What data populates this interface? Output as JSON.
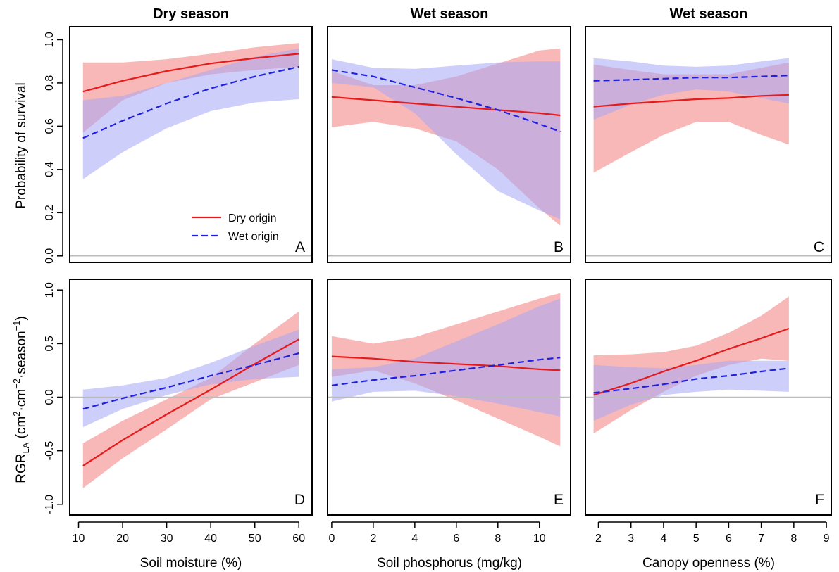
{
  "colors": {
    "dry_line": "#e8191b",
    "wet_line": "#1f1fe0",
    "dry_band": "#f5a0a0",
    "wet_band": "#a6a6f6",
    "zero_line": "#bbbbbb"
  },
  "chart_data": [
    {
      "id": "A",
      "type": "line",
      "title": "Dry season",
      "xlabel": "",
      "ylabel": "Probability of survival",
      "xlim": [
        8,
        63
      ],
      "ylim": [
        -0.03,
        1.06
      ],
      "xticks": [
        10,
        20,
        30,
        40,
        50,
        60
      ],
      "yticks": [
        0.0,
        0.2,
        0.4,
        0.6,
        0.8,
        1.0
      ],
      "ytick_labels": [
        "0.0",
        "0.2",
        "0.4",
        "0.6",
        "0.8",
        "1.0"
      ],
      "legend": {
        "position": "bottom-right",
        "entries": [
          "Dry origin",
          "Wet origin"
        ]
      },
      "series": [
        {
          "name": "Dry origin",
          "style": "solid",
          "x": [
            11,
            20,
            30,
            40,
            50,
            60
          ],
          "y": [
            0.76,
            0.81,
            0.855,
            0.89,
            0.915,
            0.935
          ],
          "lower": [
            0.57,
            0.72,
            0.8,
            0.84,
            0.86,
            0.875
          ],
          "upper": [
            0.895,
            0.895,
            0.91,
            0.935,
            0.965,
            0.985
          ]
        },
        {
          "name": "Wet origin",
          "style": "dashed",
          "x": [
            11,
            20,
            30,
            40,
            50,
            60
          ],
          "y": [
            0.545,
            0.625,
            0.705,
            0.775,
            0.83,
            0.875
          ],
          "lower": [
            0.355,
            0.48,
            0.59,
            0.67,
            0.71,
            0.725
          ],
          "upper": [
            0.72,
            0.74,
            0.8,
            0.86,
            0.92,
            0.96
          ]
        }
      ]
    },
    {
      "id": "B",
      "type": "line",
      "title": "Wet season",
      "xlabel": "",
      "ylabel": "",
      "xlim": [
        -0.2,
        11.5
      ],
      "ylim": [
        -0.03,
        1.06
      ],
      "xticks": [
        0,
        2,
        4,
        6,
        8,
        10
      ],
      "yticks": [
        0.0,
        0.2,
        0.4,
        0.6,
        0.8,
        1.0
      ],
      "series": [
        {
          "name": "Dry origin",
          "style": "solid",
          "x": [
            0,
            2,
            4,
            6,
            8,
            10,
            11
          ],
          "y": [
            0.735,
            0.72,
            0.705,
            0.69,
            0.675,
            0.66,
            0.65
          ],
          "lower": [
            0.595,
            0.62,
            0.59,
            0.53,
            0.4,
            0.22,
            0.14
          ],
          "upper": [
            0.855,
            0.79,
            0.79,
            0.83,
            0.89,
            0.95,
            0.96
          ]
        },
        {
          "name": "Wet origin",
          "style": "dashed",
          "x": [
            0,
            2,
            4,
            6,
            8,
            10,
            11
          ],
          "y": [
            0.86,
            0.83,
            0.78,
            0.73,
            0.675,
            0.61,
            0.575
          ],
          "lower": [
            0.8,
            0.78,
            0.66,
            0.47,
            0.3,
            0.21,
            0.17
          ],
          "upper": [
            0.91,
            0.87,
            0.865,
            0.88,
            0.895,
            0.9,
            0.9
          ]
        }
      ]
    },
    {
      "id": "C",
      "type": "line",
      "title": "Wet season",
      "xlabel": "",
      "ylabel": "",
      "xlim": [
        1.6,
        9.15
      ],
      "ylim": [
        -0.03,
        1.06
      ],
      "xticks": [
        2,
        3,
        4,
        5,
        6,
        7,
        8,
        9
      ],
      "yticks": [
        0.0,
        0.2,
        0.4,
        0.6,
        0.8,
        1.0
      ],
      "series": [
        {
          "name": "Dry origin",
          "style": "solid",
          "x": [
            1.85,
            3,
            4,
            5,
            6,
            7,
            7.85
          ],
          "y": [
            0.69,
            0.705,
            0.715,
            0.725,
            0.73,
            0.74,
            0.745
          ],
          "lower": [
            0.385,
            0.48,
            0.56,
            0.62,
            0.62,
            0.56,
            0.515
          ],
          "upper": [
            0.885,
            0.86,
            0.84,
            0.84,
            0.84,
            0.87,
            0.895
          ]
        },
        {
          "name": "Wet origin",
          "style": "dashed",
          "x": [
            1.85,
            3,
            4,
            5,
            6,
            7,
            7.85
          ],
          "y": [
            0.81,
            0.815,
            0.82,
            0.825,
            0.825,
            0.83,
            0.835
          ],
          "lower": [
            0.63,
            0.7,
            0.745,
            0.77,
            0.76,
            0.73,
            0.705
          ],
          "upper": [
            0.915,
            0.9,
            0.88,
            0.875,
            0.88,
            0.9,
            0.915
          ]
        }
      ]
    },
    {
      "id": "D",
      "type": "line",
      "title": "",
      "xlabel": "Soil moisture (%)",
      "ylabel": "RGR",
      "ylabel_sub": "LA",
      "ylabel_rest": " (cm",
      "ylabel_sup1": "2",
      "ylabel_mid": "·cm",
      "ylabel_sup2": "−2",
      "ylabel_mid2": "·season",
      "ylabel_sup3": "−1",
      "ylabel_end": ")",
      "xlim": [
        8,
        63
      ],
      "ylim": [
        -1.1,
        1.1
      ],
      "xticks": [
        10,
        20,
        30,
        40,
        50,
        60
      ],
      "yticks": [
        -1.0,
        -0.5,
        0.0,
        0.5,
        1.0
      ],
      "ytick_labels": [
        "-1.0",
        "-0.5",
        "0.0",
        "0.5",
        "1.0"
      ],
      "series": [
        {
          "name": "Dry origin",
          "style": "solid",
          "x": [
            11,
            20,
            30,
            40,
            50,
            60
          ],
          "y": [
            -0.64,
            -0.4,
            -0.16,
            0.07,
            0.31,
            0.54
          ],
          "lower": [
            -0.85,
            -0.57,
            -0.3,
            -0.02,
            0.14,
            0.3
          ],
          "upper": [
            -0.43,
            -0.22,
            -0.02,
            0.18,
            0.5,
            0.8
          ]
        },
        {
          "name": "Wet origin",
          "style": "dashed",
          "x": [
            11,
            20,
            30,
            40,
            50,
            60
          ],
          "y": [
            -0.11,
            -0.01,
            0.09,
            0.2,
            0.3,
            0.41
          ],
          "lower": [
            -0.28,
            -0.11,
            0.02,
            0.12,
            0.17,
            0.19
          ],
          "upper": [
            0.07,
            0.11,
            0.18,
            0.32,
            0.48,
            0.63
          ]
        }
      ]
    },
    {
      "id": "E",
      "type": "line",
      "title": "",
      "xlabel": "Soil phosphorus (mg/kg)",
      "ylabel": "",
      "xlim": [
        -0.2,
        11.5
      ],
      "ylim": [
        -1.1,
        1.1
      ],
      "xticks": [
        0,
        2,
        4,
        6,
        8,
        10
      ],
      "yticks": [
        -1.0,
        -0.5,
        0.0,
        0.5,
        1.0
      ],
      "series": [
        {
          "name": "Dry origin",
          "style": "solid",
          "x": [
            0,
            2,
            4,
            6,
            8,
            10,
            11
          ],
          "y": [
            0.38,
            0.36,
            0.33,
            0.31,
            0.29,
            0.26,
            0.25
          ],
          "lower": [
            0.19,
            0.25,
            0.13,
            -0.03,
            -0.2,
            -0.37,
            -0.46
          ],
          "upper": [
            0.57,
            0.5,
            0.56,
            0.68,
            0.8,
            0.92,
            0.97
          ]
        },
        {
          "name": "Wet origin",
          "style": "dashed",
          "x": [
            0,
            2,
            4,
            6,
            8,
            10,
            11
          ],
          "y": [
            0.11,
            0.16,
            0.2,
            0.25,
            0.3,
            0.35,
            0.37
          ],
          "lower": [
            -0.04,
            0.05,
            0.06,
            0.01,
            -0.06,
            -0.14,
            -0.18
          ],
          "upper": [
            0.26,
            0.28,
            0.36,
            0.52,
            0.68,
            0.85,
            0.92
          ]
        }
      ]
    },
    {
      "id": "F",
      "type": "line",
      "title": "",
      "xlabel": "Canopy openness (%)",
      "ylabel": "",
      "xlim": [
        1.6,
        9.15
      ],
      "ylim": [
        -1.1,
        1.1
      ],
      "xticks": [
        2,
        3,
        4,
        5,
        6,
        7,
        8,
        9
      ],
      "yticks": [
        -1.0,
        -0.5,
        0.0,
        0.5,
        1.0
      ],
      "series": [
        {
          "name": "Dry origin",
          "style": "solid",
          "x": [
            1.85,
            3,
            4,
            5,
            6,
            7,
            7.85
          ],
          "y": [
            0.02,
            0.13,
            0.24,
            0.34,
            0.45,
            0.55,
            0.64
          ],
          "lower": [
            -0.34,
            -0.12,
            0.05,
            0.2,
            0.3,
            0.36,
            0.34
          ],
          "upper": [
            0.39,
            0.4,
            0.42,
            0.48,
            0.6,
            0.76,
            0.94
          ]
        },
        {
          "name": "Wet origin",
          "style": "dashed",
          "x": [
            1.85,
            3,
            4,
            5,
            6,
            7,
            7.85
          ],
          "y": [
            0.04,
            0.08,
            0.12,
            0.17,
            0.2,
            0.24,
            0.27
          ],
          "lower": [
            -0.22,
            -0.07,
            0.02,
            0.05,
            0.07,
            0.06,
            0.05
          ],
          "upper": [
            0.3,
            0.28,
            0.27,
            0.3,
            0.34,
            0.34,
            0.34
          ]
        }
      ]
    }
  ]
}
